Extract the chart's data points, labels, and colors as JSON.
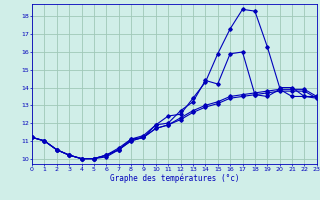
{
  "xlabel": "Graphe des températures (°c)",
  "bg_color": "#d0eee8",
  "grid_color": "#a0c8b8",
  "line_color": "#0000bb",
  "xlim": [
    0,
    23
  ],
  "ylim": [
    9.7,
    18.7
  ],
  "xticks": [
    0,
    1,
    2,
    3,
    4,
    5,
    6,
    7,
    8,
    9,
    10,
    11,
    12,
    13,
    14,
    15,
    16,
    17,
    18,
    19,
    20,
    21,
    22,
    23
  ],
  "yticks": [
    10,
    11,
    12,
    13,
    14,
    15,
    16,
    17,
    18
  ],
  "line1_x": [
    0,
    1,
    2,
    3,
    4,
    5,
    6,
    7,
    8,
    9,
    10,
    11,
    12,
    13,
    14,
    15,
    16,
    17,
    18,
    19,
    20,
    21,
    22,
    23
  ],
  "line1_y": [
    11.2,
    11.0,
    10.5,
    10.2,
    10.0,
    10.0,
    10.2,
    10.5,
    11.1,
    11.2,
    11.9,
    12.4,
    12.5,
    13.4,
    14.3,
    15.9,
    17.3,
    18.4,
    18.3,
    16.3,
    14.0,
    14.0,
    13.5,
    13.5
  ],
  "line2_x": [
    0,
    1,
    2,
    3,
    4,
    5,
    6,
    7,
    8,
    9,
    10,
    11,
    12,
    13,
    14,
    15,
    16,
    17,
    18,
    19,
    20,
    21,
    22,
    23
  ],
  "line2_y": [
    11.2,
    11.0,
    10.5,
    10.2,
    10.0,
    10.0,
    10.2,
    10.6,
    11.1,
    11.3,
    11.9,
    12.0,
    12.7,
    13.2,
    14.4,
    14.2,
    15.9,
    16.0,
    13.6,
    13.5,
    13.9,
    13.5,
    13.5,
    13.4
  ],
  "line3_x": [
    0,
    1,
    2,
    3,
    4,
    5,
    6,
    7,
    8,
    9,
    10,
    11,
    12,
    13,
    14,
    15,
    16,
    17,
    18,
    19,
    20,
    21,
    22,
    23
  ],
  "line3_y": [
    11.2,
    11.0,
    10.5,
    10.2,
    10.0,
    10.0,
    10.2,
    10.5,
    11.0,
    11.2,
    11.7,
    11.9,
    12.3,
    12.7,
    13.0,
    13.2,
    13.5,
    13.6,
    13.7,
    13.8,
    13.9,
    13.9,
    13.9,
    13.5
  ],
  "line4_x": [
    0,
    1,
    2,
    3,
    4,
    5,
    6,
    7,
    8,
    9,
    10,
    11,
    12,
    13,
    14,
    15,
    16,
    17,
    18,
    19,
    20,
    21,
    22,
    23
  ],
  "line4_y": [
    11.2,
    11.0,
    10.5,
    10.2,
    10.0,
    10.0,
    10.1,
    10.5,
    11.0,
    11.2,
    11.7,
    11.9,
    12.2,
    12.6,
    12.9,
    13.1,
    13.4,
    13.5,
    13.6,
    13.7,
    13.8,
    13.8,
    13.8,
    13.4
  ]
}
